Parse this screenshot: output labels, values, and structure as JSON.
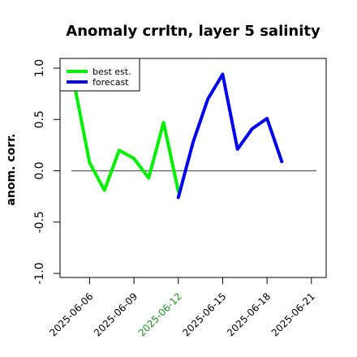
{
  "chart_data": {
    "type": "line",
    "title": "Anomaly crrltn, layer 5 salinity",
    "xlabel": "",
    "ylabel": "anom. corr.",
    "ylim": [
      -1.0,
      1.0
    ],
    "yticks": [
      "-1.0",
      "-0.5",
      "0.0",
      "0.5",
      "1.0"
    ],
    "xlim": [
      "2025-06-04",
      "2025-06-22"
    ],
    "xticks": [
      {
        "date": "2025-06-06",
        "label": "2025-06-06",
        "color": "#000000"
      },
      {
        "date": "2025-06-09",
        "label": "2025-06-09",
        "color": "#000000"
      },
      {
        "date": "2025-06-12",
        "label": "2025-06-12",
        "color": "#1f8f1f"
      },
      {
        "date": "2025-06-15",
        "label": "2025-06-15",
        "color": "#000000"
      },
      {
        "date": "2025-06-18",
        "label": "2025-06-18",
        "color": "#000000"
      },
      {
        "date": "2025-06-21",
        "label": "2025-06-21",
        "color": "#000000"
      }
    ],
    "zero_line": 0,
    "legend_position": "top-left",
    "series": [
      {
        "name": "best est.",
        "color": "#00ee00",
        "points": [
          {
            "x": "2025-06-05",
            "y": 0.82
          },
          {
            "x": "2025-06-06",
            "y": 0.08
          },
          {
            "x": "2025-06-07",
            "y": -0.19
          },
          {
            "x": "2025-06-08",
            "y": 0.2
          },
          {
            "x": "2025-06-09",
            "y": 0.12
          },
          {
            "x": "2025-06-10",
            "y": -0.07
          },
          {
            "x": "2025-06-11",
            "y": 0.47
          },
          {
            "x": "2025-06-12",
            "y": -0.2
          }
        ]
      },
      {
        "name": "forecast",
        "color": "#0000ee",
        "points": [
          {
            "x": "2025-06-12",
            "y": -0.26
          },
          {
            "x": "2025-06-13",
            "y": 0.28
          },
          {
            "x": "2025-06-14",
            "y": 0.7
          },
          {
            "x": "2025-06-15",
            "y": 0.94
          },
          {
            "x": "2025-06-16",
            "y": 0.21
          },
          {
            "x": "2025-06-17",
            "y": 0.41
          },
          {
            "x": "2025-06-18",
            "y": 0.51
          },
          {
            "x": "2025-06-19",
            "y": 0.09
          }
        ]
      }
    ]
  }
}
